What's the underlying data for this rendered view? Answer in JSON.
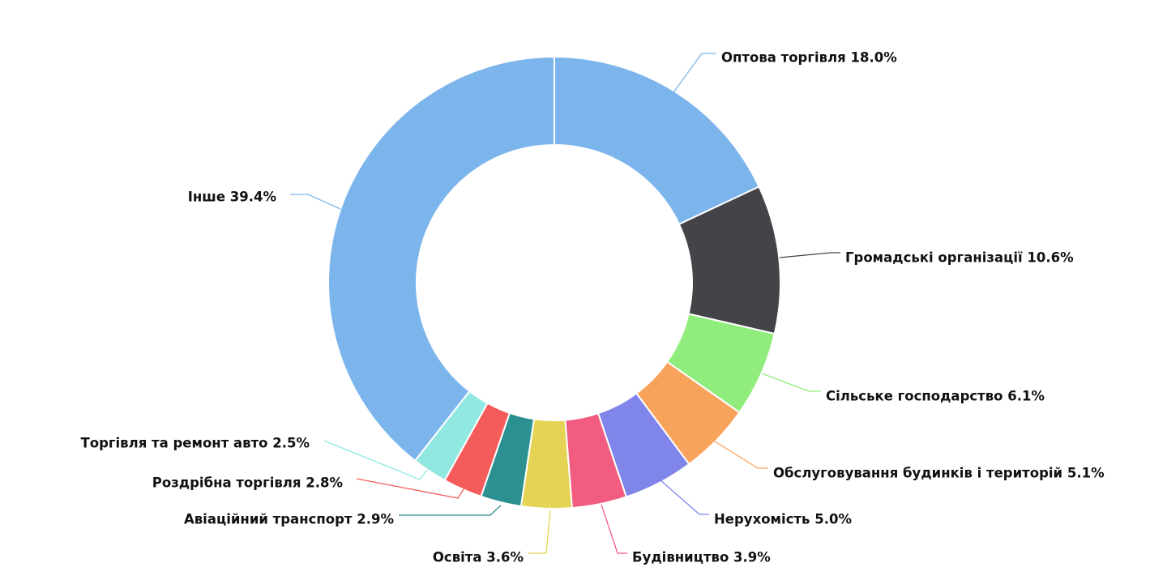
{
  "chart_data": {
    "type": "pie",
    "variant": "donut",
    "title": "",
    "slices": [
      {
        "name": "Оптова торгівля",
        "value": 18.0,
        "label": "Оптова торгівля 18.0%",
        "color": "#7cb5ec"
      },
      {
        "name": "Громадські організації",
        "value": 10.6,
        "label": "Громадські організації 10.6%",
        "color": "#434348"
      },
      {
        "name": "Сільське господарство",
        "value": 6.1,
        "label": "Сільське господарство 6.1%",
        "color": "#90ed7d"
      },
      {
        "name": "Обслуговування будинків і територій",
        "value": 5.1,
        "label": "Обслуговування будинків і територій 5.1%",
        "color": "#f7a35c"
      },
      {
        "name": "Нерухомість",
        "value": 5.0,
        "label": "Нерухомість 5.0%",
        "color": "#8085e9"
      },
      {
        "name": "Будівництво",
        "value": 3.9,
        "label": "Будівництво 3.9%",
        "color": "#f15c80"
      },
      {
        "name": "Освіта",
        "value": 3.6,
        "label": "Освіта 3.6%",
        "color": "#e4d354"
      },
      {
        "name": "Авіаційний транспорт",
        "value": 2.9,
        "label": "Авіаційний транспорт 2.9%",
        "color": "#2b908f"
      },
      {
        "name": "Роздрібна торгівля",
        "value": 2.8,
        "label": "Роздрібна торгівля 2.8%",
        "color": "#f45b5b"
      },
      {
        "name": "Торгівля та ремонт авто",
        "value": 2.5,
        "label": "Торгівля та ремонт авто 2.5%",
        "color": "#91e8e1"
      },
      {
        "name": "Інше",
        "value": 39.4,
        "label": "Інше 39.4%",
        "color": "#7cb5ec"
      }
    ]
  }
}
